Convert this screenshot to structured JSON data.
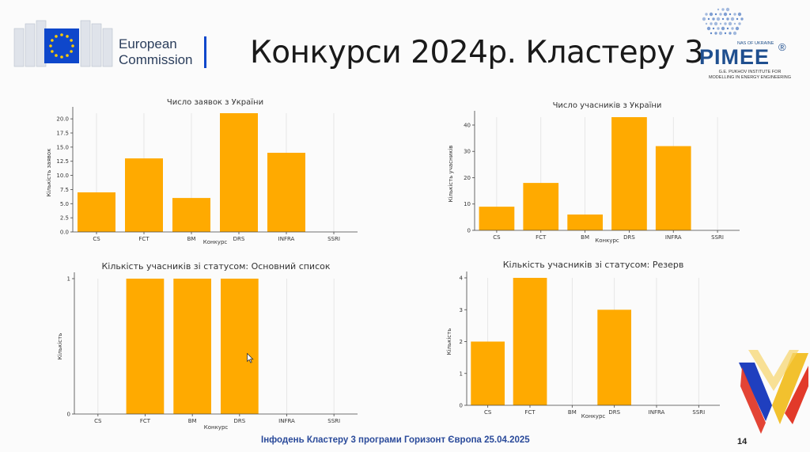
{
  "header": {
    "brand_line1": "European",
    "brand_line2": "Commission",
    "title": "Конкурси 2024р. Кластеру 3"
  },
  "partner_logo": {
    "nas": "NAS OF UKRAINE",
    "name": "PIMEE",
    "reg": "®",
    "subtitle_line1": "G.E. PUKHOV INSTITUTE FOR",
    "subtitle_line2": "MODELLING IN ENERGY ENGINEERING"
  },
  "footer": {
    "text": "Інфодень Кластеру 3 програми Горизонт Європа 25.04.2025",
    "page_number": "14"
  },
  "colors": {
    "bar": "#FFAA00",
    "axis": "#444444",
    "grid": "#e2e2e2",
    "title_text": "#1a1a1a",
    "footer_text": "#2a4a9a",
    "eu_blue": "#0e47cb",
    "eu_star": "#ffcc00"
  },
  "chart_data": [
    {
      "type": "bar",
      "title": "Число заявок з України",
      "xlabel": "Конкурс",
      "ylabel": "Кількість заявок",
      "categories": [
        "CS",
        "FCT",
        "BM",
        "DRS",
        "INFRA",
        "SSRI"
      ],
      "values": [
        7,
        13,
        6,
        21,
        14,
        0
      ],
      "ylim": [
        0,
        21
      ],
      "yticks": [
        "0.0",
        "2.5",
        "5.0",
        "7.5",
        "10.0",
        "12.5",
        "15.0",
        "17.5",
        "20.0"
      ],
      "grid": true
    },
    {
      "type": "bar",
      "title": "Число учасників з України",
      "xlabel": "Конкурс",
      "ylabel": "Кількість учасників",
      "categories": [
        "CS",
        "FCT",
        "BM",
        "DRS",
        "INFRA",
        "SSRI"
      ],
      "values": [
        9,
        18,
        6,
        43,
        32,
        0
      ],
      "ylim": [
        0,
        43
      ],
      "yticks": [
        "0",
        "10",
        "20",
        "30",
        "40"
      ],
      "grid": true
    },
    {
      "type": "bar",
      "title": "Кількість учасників зі статусом: Основний список",
      "xlabel": "Конкурс",
      "ylabel": "Кількість",
      "categories": [
        "CS",
        "FCT",
        "BM",
        "DRS",
        "INFRA",
        "SSRI"
      ],
      "values": [
        0,
        1,
        1,
        1,
        0,
        0
      ],
      "ylim": [
        0,
        1
      ],
      "yticks": [
        "0",
        "1"
      ],
      "grid": true
    },
    {
      "type": "bar",
      "title": "Кількість учасників зі статусом: Резерв",
      "xlabel": "Конкурс",
      "ylabel": "Кількість",
      "categories": [
        "CS",
        "FCT",
        "BM",
        "DRS",
        "INFRA",
        "SSRI"
      ],
      "values": [
        2,
        4,
        0,
        3,
        0,
        0
      ],
      "ylim": [
        0,
        4
      ],
      "yticks": [
        "0",
        "1",
        "2",
        "3",
        "4"
      ],
      "grid": true
    }
  ]
}
